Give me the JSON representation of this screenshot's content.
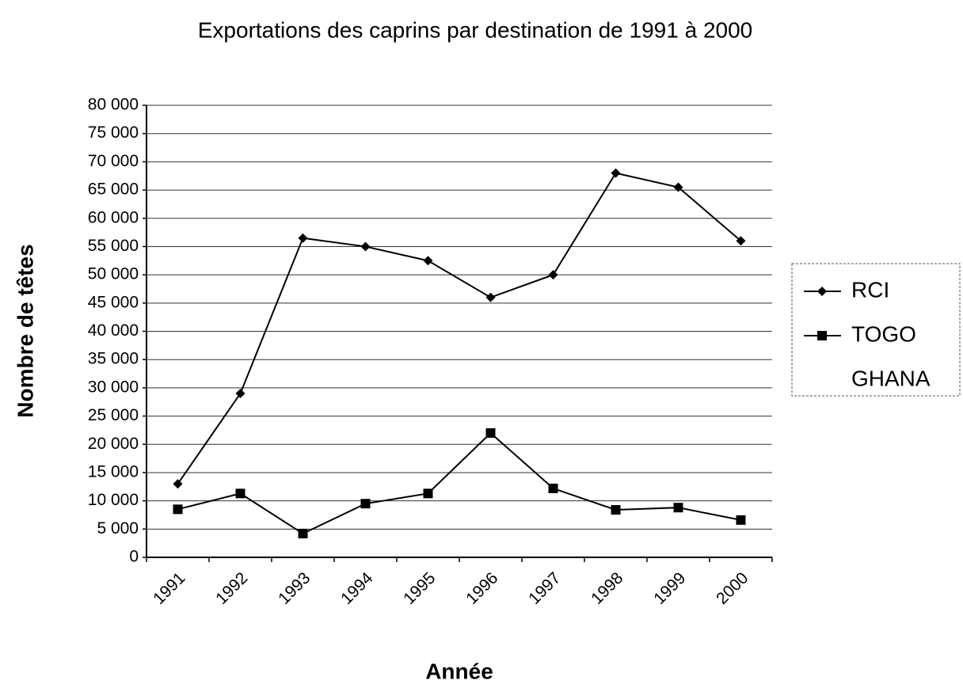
{
  "chart_data": {
    "type": "line",
    "title": "Exportations des caprins par destination de 1991 à 2000",
    "xlabel": "Année",
    "ylabel": "Nombre de têtes",
    "categories": [
      "1991",
      "1992",
      "1993",
      "1994",
      "1995",
      "1996",
      "1997",
      "1998",
      "1999",
      "2000"
    ],
    "series": [
      {
        "name": "RCI",
        "color": "#000000",
        "marker": "diamond",
        "values": [
          13000,
          29000,
          56500,
          55000,
          52500,
          46000,
          50000,
          68000,
          65500,
          56000
        ]
      },
      {
        "name": "TOGO",
        "color": "#000000",
        "marker": "square",
        "values": [
          8500,
          11300,
          4200,
          9500,
          11300,
          22000,
          12200,
          8400,
          8800,
          6600
        ]
      },
      {
        "name": "GHANA",
        "color": "#bbbbbb",
        "marker": null,
        "values": [
          null,
          null,
          null,
          null,
          null,
          null,
          null,
          null,
          null,
          null
        ]
      }
    ],
    "ylim": [
      0,
      80000
    ],
    "yticks": [
      0,
      {
        "value": 5000,
        "label": "5 000"
      },
      {
        "value": 10000,
        "label": "10 000"
      },
      {
        "value": 15000,
        "label": "15 000"
      },
      {
        "value": 20000,
        "label": "20 000"
      },
      {
        "value": 25000,
        "label": "25 000"
      },
      {
        "value": 30000,
        "label": "30 000"
      },
      {
        "value": 35000,
        "label": "35 000"
      },
      {
        "value": 40000,
        "label": "40 000"
      },
      {
        "value": 45000,
        "label": "45 000"
      },
      {
        "value": 50000,
        "label": "50 000"
      },
      {
        "value": 55000,
        "label": "55 000"
      },
      {
        "value": 60000,
        "label": "60 000"
      },
      {
        "value": 65000,
        "label": "65 000"
      },
      {
        "value": 70000,
        "label": "70 000"
      },
      {
        "value": 75000,
        "label": "75 000"
      },
      {
        "value": 80000,
        "label": "80 000"
      }
    ],
    "grid": true,
    "legend": "right"
  }
}
